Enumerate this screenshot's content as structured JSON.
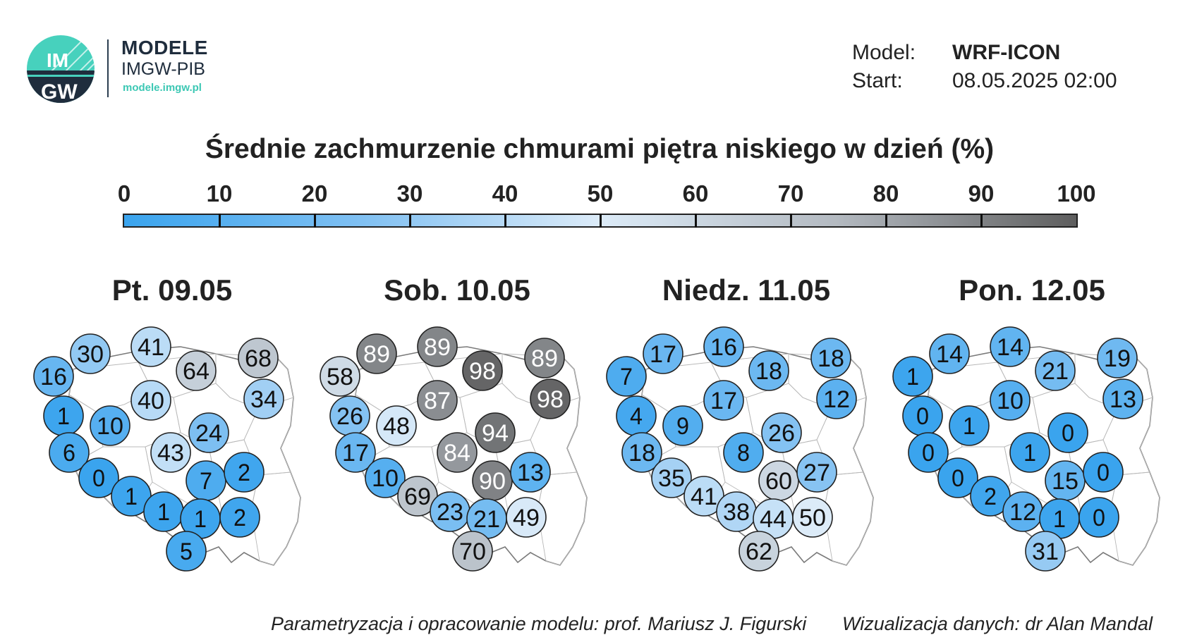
{
  "brand": {
    "logo_text_top": "IM",
    "logo_text_bottom": "GW",
    "title": "MODELE",
    "subtitle": "IMGW-PIB",
    "url": "modele.imgw.pl"
  },
  "meta": {
    "model_label": "Model:",
    "model_value": "WRF-ICON",
    "start_label": "Start:",
    "start_value": "08.05.2025 02:00"
  },
  "title": "Średnie zachmurzenie chmurami piętra niskiego w dzień (%)",
  "colorbar": {
    "ticks": [
      "0",
      "10",
      "20",
      "30",
      "40",
      "50",
      "60",
      "70",
      "80",
      "90",
      "100"
    ],
    "colors": [
      "#3aa4ee",
      "#80c0f2",
      "#dcebf8",
      "#b3b9c0",
      "#5e5e5e"
    ]
  },
  "days": [
    {
      "label": "Pt. 09.05",
      "values": [
        16,
        30,
        41,
        64,
        68,
        34,
        40,
        1,
        10,
        6,
        24,
        43,
        0,
        1,
        7,
        2,
        1,
        1,
        2,
        5
      ]
    },
    {
      "label": "Sob. 10.05",
      "values": [
        58,
        89,
        89,
        98,
        89,
        98,
        87,
        26,
        48,
        17,
        94,
        84,
        10,
        69,
        90,
        13,
        23,
        21,
        49,
        70
      ]
    },
    {
      "label": "Niedz. 11.05",
      "values": [
        7,
        17,
        16,
        18,
        18,
        12,
        17,
        4,
        9,
        18,
        26,
        8,
        35,
        41,
        60,
        27,
        38,
        44,
        50,
        62
      ]
    },
    {
      "label": "Pon. 12.05",
      "values": [
        1,
        14,
        14,
        21,
        19,
        13,
        10,
        0,
        1,
        0,
        0,
        1,
        0,
        2,
        15,
        0,
        12,
        1,
        0,
        31
      ]
    }
  ],
  "footer": {
    "left": "Parametryzacja i opracowanie modelu: prof. Mariusz J. Figurski",
    "right": "Wizualizacja danych: dr Alan Mandal"
  }
}
